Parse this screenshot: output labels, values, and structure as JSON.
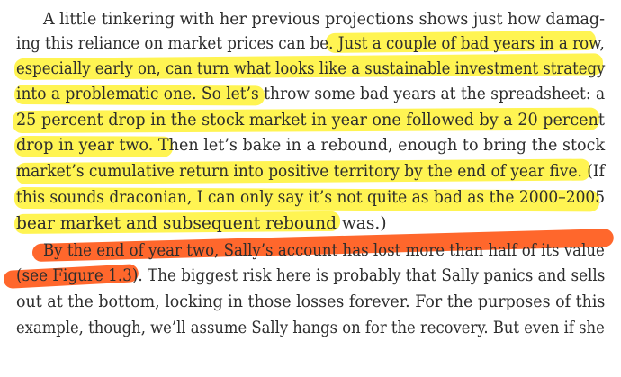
{
  "page": {
    "lines": [
      "A little tinkering with her previous projections shows just how damag-",
      "ing this reliance on market prices can be. Just a couple of bad years in a row,",
      "especially early on, can turn what looks like a sustainable investment strategy",
      "into a problematic one. So let’s throw some bad years at the spreadsheet: a",
      "25 percent drop in the stock market in year one followed by a 20 percent",
      "drop in year two. Then let’s bake in a rebound, enough to bring the stock",
      "market’s cumulative return into positive territory by the end of year five. (If",
      "this sounds draconian, I can only say it’s not quite as bad as the 2000–2005",
      "bear market and subsequent rebound was.)",
      "By the end of year two, Sally’s account has lost more than half of its value",
      "(see Figure 1.3). The biggest risk here is probably that Sally panics and sells",
      "out at the bottom, locking in those losses forever. For the purposes of this",
      "example, though, we’ll assume Sally hangs on for the recovery. But even if she"
    ]
  },
  "highlights": {
    "yellow": "#fff236",
    "orange": "#ff5a1a"
  }
}
